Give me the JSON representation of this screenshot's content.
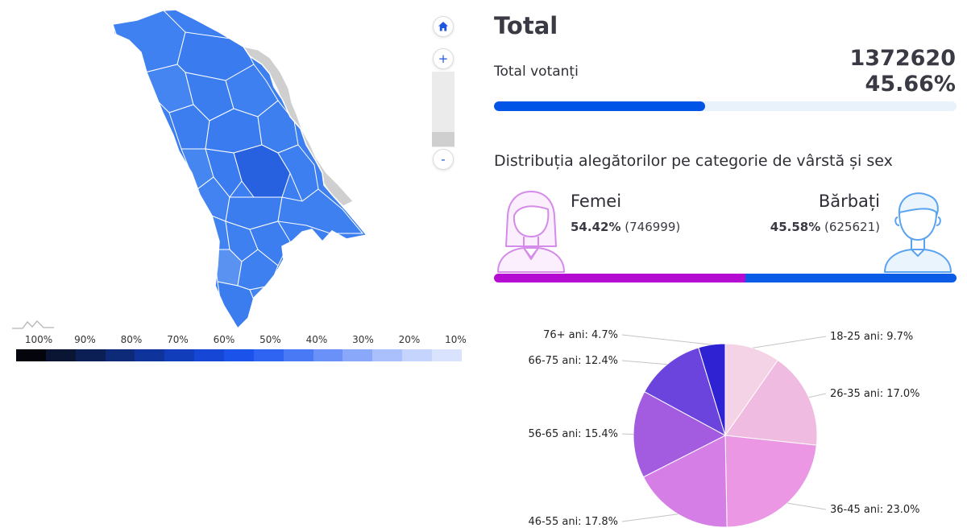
{
  "map": {
    "controls": {
      "home_icon": "home-icon",
      "zoom_in_label": "+",
      "zoom_out_label": "-"
    },
    "legend": {
      "labels": [
        "100%",
        "90%",
        "80%",
        "70%",
        "60%",
        "50%",
        "40%",
        "30%",
        "20%",
        "10%"
      ],
      "colors": [
        "#04050c",
        "#0a1433",
        "#0c1f55",
        "#0d2a78",
        "#0e339a",
        "#113dbb",
        "#1546d6",
        "#1a52ea",
        "#2f64f2",
        "#4a79f6",
        "#6a91f8",
        "#8aa8fa",
        "#a9c0fc",
        "#c4d4fd",
        "#d9e3fe"
      ],
      "scale_icon": "chart-sparkline-icon"
    },
    "region_colors": {
      "base": "#3d7ff0",
      "dark": "#2861e0",
      "light": "#5a92f2",
      "inactive": "#cfcfcf",
      "border": "#ffffff"
    }
  },
  "total": {
    "title": "Total",
    "label": "Total votanți",
    "count": "1372620",
    "percent": "45.66%",
    "turnout_fraction": 0.4566,
    "bar_color": "#0055e6",
    "track_color": "#e9f1fb"
  },
  "distribution": {
    "title": "Distribuția alegătorilor pe categorie de vârstă și sex",
    "female": {
      "label": "Femei",
      "percent": "54.42%",
      "count": "(746999)",
      "fraction": 0.5442,
      "color": "#b40ad2",
      "icon": "female-avatar-icon"
    },
    "male": {
      "label": "Bărbați",
      "percent": "45.58%",
      "count": "(625621)",
      "fraction": 0.4558,
      "color": "#0a5ce6",
      "icon": "male-avatar-icon"
    }
  },
  "chart_data": {
    "type": "pie",
    "title": "",
    "categories": [
      "18-25 ani",
      "26-35 ani",
      "36-45 ani",
      "46-55 ani",
      "56-65 ani",
      "66-75 ani",
      "76+ ani"
    ],
    "values": [
      9.7,
      17.0,
      23.0,
      17.8,
      15.4,
      12.4,
      4.7
    ],
    "labels": [
      "18-25 ani: 9.7%",
      "26-35 ani: 17.0%",
      "36-45 ani: 23.0%",
      "46-55 ani: 17.8%",
      "56-65 ani: 15.4%",
      "66-75 ani: 12.4%",
      "76+ ani: 4.7%"
    ],
    "colors": [
      "#f4d3e6",
      "#efbbe0",
      "#eb97e4",
      "#d57fe6",
      "#a35cdf",
      "#6b44dd",
      "#2f22d3"
    ]
  }
}
